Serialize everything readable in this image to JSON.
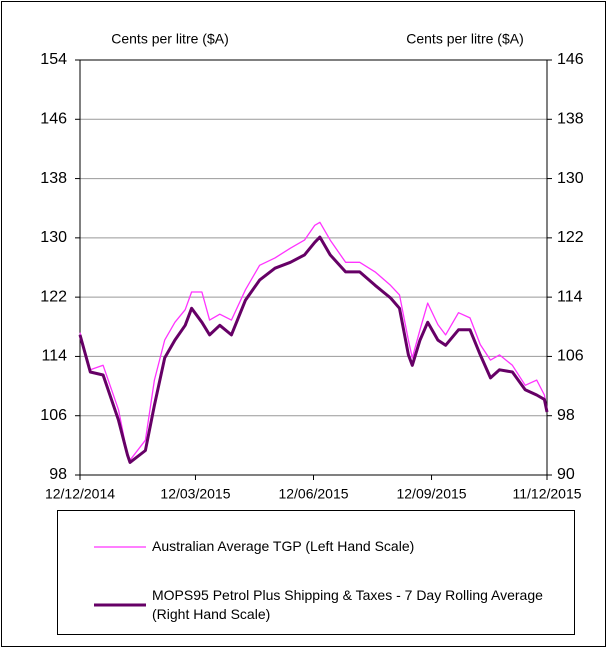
{
  "chart_data": {
    "type": "line",
    "y_label": "Cents per litre ($A)",
    "y2_label": "Cents per litre ($A)",
    "x": [
      "2014-12-12",
      "2014-12-20",
      "2014-12-30",
      "2015-01-11",
      "2015-01-18",
      "2015-01-20",
      "2015-02-01",
      "2015-02-08",
      "2015-02-16",
      "2015-02-24",
      "2015-03-04",
      "2015-03-09",
      "2015-03-17",
      "2015-03-23",
      "2015-03-31",
      "2015-04-09",
      "2015-04-20",
      "2015-05-01",
      "2015-05-13",
      "2015-05-25",
      "2015-06-05",
      "2015-06-13",
      "2015-06-17",
      "2015-06-25",
      "2015-07-07",
      "2015-07-18",
      "2015-07-30",
      "2015-08-11",
      "2015-08-18",
      "2015-08-25",
      "2015-08-28",
      "2015-09-03",
      "2015-09-09",
      "2015-09-17",
      "2015-09-23",
      "2015-10-03",
      "2015-10-12",
      "2015-10-20",
      "2015-10-28",
      "2015-11-04",
      "2015-11-14",
      "2015-11-24",
      "2015-12-03",
      "2015-12-09",
      "2015-12-11"
    ],
    "series": [
      {
        "name": "Australian Average TGP (Left Hand Scale)",
        "color": "#ff33ff",
        "axis": "y",
        "values": [
          117.2,
          112.2,
          112.8,
          106.8,
          100.7,
          100.0,
          102.7,
          110.8,
          116.2,
          118.6,
          120.3,
          122.7,
          122.7,
          118.9,
          119.7,
          118.9,
          123.0,
          126.3,
          127.3,
          128.6,
          129.7,
          131.7,
          132.1,
          129.7,
          126.7,
          126.7,
          125.4,
          123.6,
          122.3,
          116.2,
          113.8,
          117.6,
          121.2,
          118.3,
          116.9,
          119.9,
          119.2,
          115.6,
          113.5,
          114.2,
          112.8,
          110.1,
          110.8,
          108.8,
          106.8
        ]
      },
      {
        "name": "MOPS95 Petrol Plus Shipping & Taxes - 7 Day Rolling Average (Right Hand Scale)",
        "color": "#660066",
        "axis": "y2",
        "values": [
          108.9,
          103.9,
          103.5,
          97.4,
          92.7,
          91.7,
          93.3,
          99.4,
          105.8,
          108.2,
          110.2,
          112.5,
          110.6,
          108.9,
          110.2,
          108.9,
          113.6,
          116.3,
          117.9,
          118.7,
          119.7,
          121.4,
          122.1,
          119.7,
          117.4,
          117.4,
          115.6,
          113.9,
          112.5,
          106.2,
          104.8,
          108.2,
          110.6,
          108.2,
          107.5,
          109.6,
          109.6,
          106.2,
          103.1,
          104.2,
          103.9,
          101.5,
          100.8,
          100.2,
          98.5
        ]
      }
    ],
    "xlim": [
      "2014-12-12",
      "2015-12-11"
    ],
    "xticks": [
      {
        "value": "2014-12-12",
        "label": "12/12/2014"
      },
      {
        "value": "2015-03-12",
        "label": "12/03/2015"
      },
      {
        "value": "2015-06-12",
        "label": "12/06/2015"
      },
      {
        "value": "2015-09-12",
        "label": "12/09/2015"
      },
      {
        "value": "2015-12-11",
        "label": "11/12/2015"
      }
    ],
    "ylim": [
      98,
      154
    ],
    "yticks": [
      98,
      106,
      114,
      122,
      130,
      138,
      146,
      154
    ],
    "y2lim": [
      90,
      146
    ],
    "y2ticks": [
      90,
      98,
      106,
      114,
      122,
      130,
      138,
      146
    ],
    "grid": true
  }
}
